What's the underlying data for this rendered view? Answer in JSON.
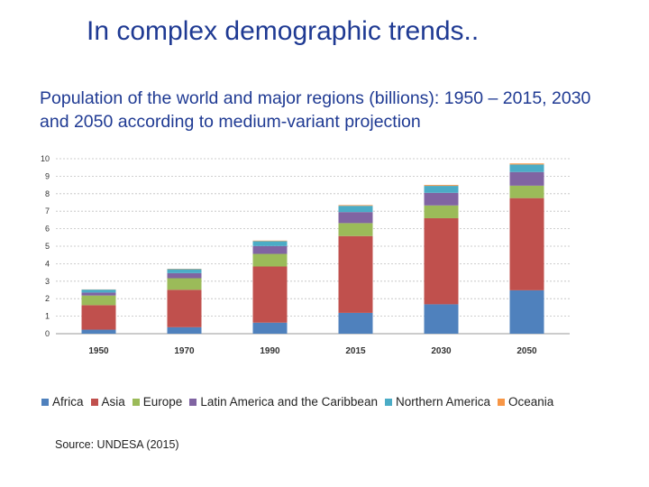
{
  "slide": {
    "title": "In complex demographic trends..",
    "subtitle": "Population of the world and major regions (billions): 1950 – 2015, 2030 and 2050 according to medium-variant projection",
    "source": "Source: UNDESA (2015)"
  },
  "chart_data": {
    "type": "bar",
    "stacked": true,
    "categories": [
      "1950",
      "1970",
      "1990",
      "2015",
      "2030",
      "2050"
    ],
    "series": [
      {
        "name": "Africa",
        "color": "#4f81bd",
        "values": [
          0.23,
          0.37,
          0.63,
          1.19,
          1.68,
          2.48
        ]
      },
      {
        "name": "Asia",
        "color": "#c0504d",
        "values": [
          1.4,
          2.14,
          3.21,
          4.39,
          4.92,
          5.27
        ]
      },
      {
        "name": "Europe",
        "color": "#9bbb59",
        "values": [
          0.55,
          0.66,
          0.72,
          0.74,
          0.73,
          0.71
        ]
      },
      {
        "name": "Latin America and the Caribbean",
        "color": "#8064a2",
        "values": [
          0.17,
          0.29,
          0.45,
          0.63,
          0.72,
          0.78
        ]
      },
      {
        "name": "Northern America",
        "color": "#4bacc6",
        "values": [
          0.17,
          0.23,
          0.28,
          0.36,
          0.4,
          0.43
        ]
      },
      {
        "name": "Oceania",
        "color": "#f79646",
        "values": [
          0.01,
          0.02,
          0.03,
          0.04,
          0.05,
          0.06
        ]
      }
    ],
    "yticks": [
      "0",
      "1",
      "2",
      "3",
      "4",
      "5",
      "6",
      "7",
      "8",
      "9",
      "10"
    ],
    "ylim": [
      0,
      10
    ],
    "grid": true,
    "legend_position": "bottom"
  }
}
